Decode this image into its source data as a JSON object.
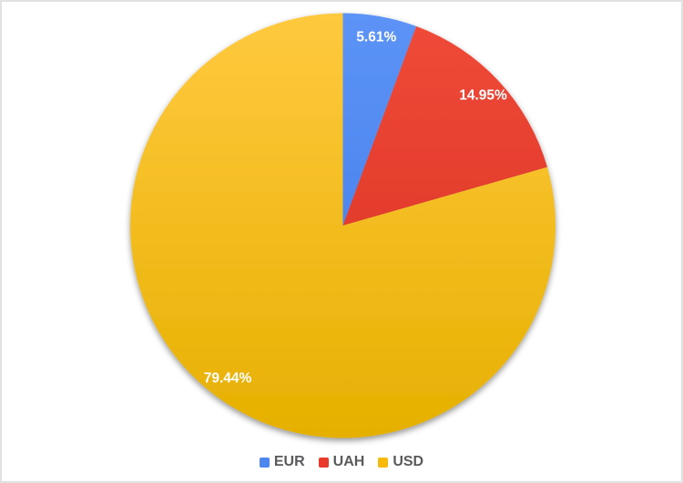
{
  "chart_data": {
    "type": "pie",
    "title": "",
    "labels": [
      "EUR",
      "UAH",
      "USD"
    ],
    "values": [
      5.61,
      14.95,
      79.44
    ],
    "value_labels": [
      "5.61%",
      "14.95%",
      "79.44%"
    ],
    "colors": [
      "#4c87f0",
      "#e8392c",
      "#f7ba0b"
    ],
    "colors_light": [
      "#5c93f6",
      "#f04a39",
      "#ffc93f"
    ],
    "colors_dark": [
      "#3c79e6",
      "#d52f1f",
      "#e6b000"
    ],
    "label_color": "#ffffff",
    "start_angle_deg": 0,
    "direction": "clockwise",
    "legend_position": "bottom",
    "legend_text_color": "#595a5c"
  }
}
